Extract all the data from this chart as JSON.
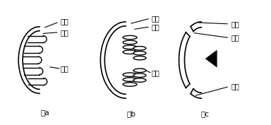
{
  "background": "#ffffff",
  "label_color": "#000000",
  "line_color": "#000000",
  "fig_a_labels": [
    "外膜",
    "内膜",
    "基质"
  ],
  "fig_b_labels": [
    "外膜",
    "内膜",
    "基质"
  ],
  "fig_c_labels": [
    "外膜",
    "内膜",
    "孔道"
  ],
  "fig_titles": [
    "图a",
    "图b",
    "图c"
  ]
}
